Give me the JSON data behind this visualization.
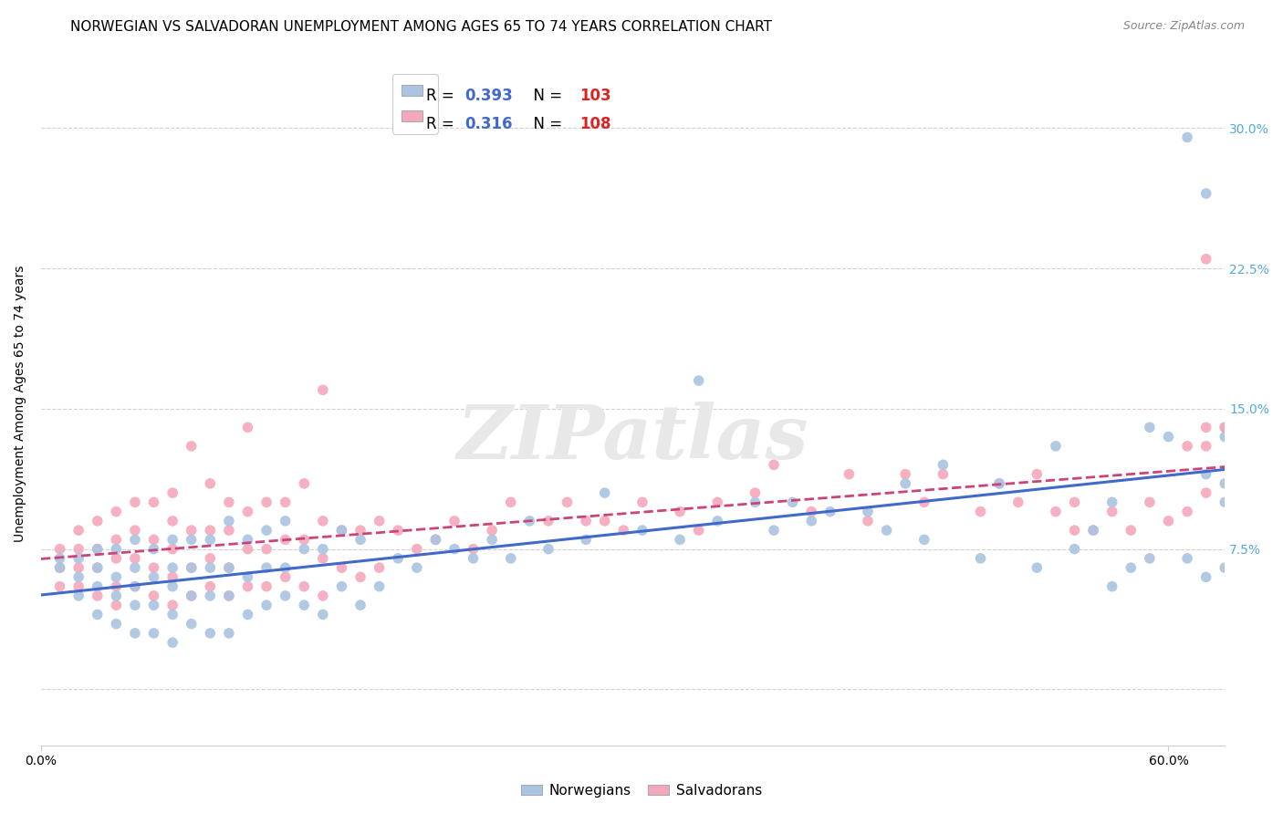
{
  "title": "NORWEGIAN VS SALVADORAN UNEMPLOYMENT AMONG AGES 65 TO 74 YEARS CORRELATION CHART",
  "source": "Source: ZipAtlas.com",
  "ylabel": "Unemployment Among Ages 65 to 74 years",
  "xlim": [
    0.0,
    0.63
  ],
  "ylim": [
    -0.03,
    0.335
  ],
  "xticks": [
    0.0,
    0.6
  ],
  "xtick_labels": [
    "0.0%",
    "60.0%"
  ],
  "yticks": [
    0.075,
    0.15,
    0.225,
    0.3
  ],
  "ytick_labels": [
    "7.5%",
    "15.0%",
    "22.5%",
    "30.0%"
  ],
  "norwegian_R": 0.393,
  "norwegian_N": 103,
  "salvadoran_R": 0.316,
  "salvadoran_N": 108,
  "norwegian_color": "#aac4e2",
  "salvadoran_color": "#f5a8bc",
  "norwegian_line_color": "#4169cc",
  "salvadoran_line_color": "#cc4477",
  "background_color": "#ffffff",
  "grid_color": "#d0d0d0",
  "tick_color": "#55aadd",
  "title_fontsize": 11,
  "axis_label_fontsize": 10,
  "tick_fontsize": 10,
  "legend_fontsize": 12,
  "norwegian_x": [
    0.01,
    0.01,
    0.02,
    0.02,
    0.02,
    0.03,
    0.03,
    0.03,
    0.03,
    0.04,
    0.04,
    0.04,
    0.04,
    0.05,
    0.05,
    0.05,
    0.05,
    0.05,
    0.06,
    0.06,
    0.06,
    0.06,
    0.07,
    0.07,
    0.07,
    0.07,
    0.07,
    0.08,
    0.08,
    0.08,
    0.08,
    0.09,
    0.09,
    0.09,
    0.09,
    0.1,
    0.1,
    0.1,
    0.1,
    0.11,
    0.11,
    0.11,
    0.12,
    0.12,
    0.12,
    0.13,
    0.13,
    0.13,
    0.14,
    0.14,
    0.15,
    0.15,
    0.16,
    0.16,
    0.17,
    0.17,
    0.18,
    0.19,
    0.2,
    0.21,
    0.22,
    0.23,
    0.24,
    0.25,
    0.26,
    0.27,
    0.29,
    0.3,
    0.32,
    0.34,
    0.35,
    0.36,
    0.38,
    0.39,
    0.4,
    0.41,
    0.42,
    0.44,
    0.45,
    0.46,
    0.47,
    0.48,
    0.5,
    0.51,
    0.53,
    0.54,
    0.55,
    0.56,
    0.57,
    0.57,
    0.58,
    0.59,
    0.59,
    0.6,
    0.61,
    0.61,
    0.62,
    0.62,
    0.62,
    0.63,
    0.63,
    0.63,
    0.63
  ],
  "norwegian_y": [
    0.065,
    0.07,
    0.05,
    0.06,
    0.07,
    0.04,
    0.055,
    0.065,
    0.075,
    0.035,
    0.05,
    0.06,
    0.075,
    0.03,
    0.045,
    0.055,
    0.065,
    0.08,
    0.03,
    0.045,
    0.06,
    0.075,
    0.025,
    0.04,
    0.055,
    0.065,
    0.08,
    0.035,
    0.05,
    0.065,
    0.08,
    0.03,
    0.05,
    0.065,
    0.08,
    0.03,
    0.05,
    0.065,
    0.09,
    0.04,
    0.06,
    0.08,
    0.045,
    0.065,
    0.085,
    0.05,
    0.065,
    0.09,
    0.045,
    0.075,
    0.04,
    0.075,
    0.055,
    0.085,
    0.045,
    0.08,
    0.055,
    0.07,
    0.065,
    0.08,
    0.075,
    0.07,
    0.08,
    0.07,
    0.09,
    0.075,
    0.08,
    0.105,
    0.085,
    0.08,
    0.165,
    0.09,
    0.1,
    0.085,
    0.1,
    0.09,
    0.095,
    0.095,
    0.085,
    0.11,
    0.08,
    0.12,
    0.07,
    0.11,
    0.065,
    0.13,
    0.075,
    0.085,
    0.055,
    0.1,
    0.065,
    0.07,
    0.14,
    0.135,
    0.295,
    0.07,
    0.265,
    0.06,
    0.115,
    0.11,
    0.1,
    0.135,
    0.065
  ],
  "salvadoran_x": [
    0.01,
    0.01,
    0.01,
    0.02,
    0.02,
    0.02,
    0.02,
    0.03,
    0.03,
    0.03,
    0.03,
    0.04,
    0.04,
    0.04,
    0.04,
    0.04,
    0.05,
    0.05,
    0.05,
    0.05,
    0.06,
    0.06,
    0.06,
    0.06,
    0.07,
    0.07,
    0.07,
    0.07,
    0.07,
    0.08,
    0.08,
    0.08,
    0.08,
    0.09,
    0.09,
    0.09,
    0.09,
    0.1,
    0.1,
    0.1,
    0.1,
    0.11,
    0.11,
    0.11,
    0.11,
    0.12,
    0.12,
    0.12,
    0.13,
    0.13,
    0.13,
    0.14,
    0.14,
    0.14,
    0.15,
    0.15,
    0.15,
    0.15,
    0.16,
    0.16,
    0.17,
    0.17,
    0.18,
    0.18,
    0.19,
    0.2,
    0.21,
    0.22,
    0.23,
    0.24,
    0.25,
    0.27,
    0.28,
    0.29,
    0.3,
    0.31,
    0.32,
    0.34,
    0.35,
    0.36,
    0.38,
    0.39,
    0.41,
    0.43,
    0.44,
    0.46,
    0.47,
    0.48,
    0.5,
    0.51,
    0.52,
    0.53,
    0.54,
    0.55,
    0.55,
    0.56,
    0.57,
    0.58,
    0.59,
    0.6,
    0.61,
    0.61,
    0.62,
    0.62,
    0.62,
    0.62,
    0.63,
    0.63
  ],
  "salvadoran_y": [
    0.055,
    0.065,
    0.075,
    0.055,
    0.065,
    0.075,
    0.085,
    0.05,
    0.065,
    0.075,
    0.09,
    0.045,
    0.055,
    0.07,
    0.08,
    0.095,
    0.055,
    0.07,
    0.085,
    0.1,
    0.05,
    0.065,
    0.08,
    0.1,
    0.045,
    0.06,
    0.075,
    0.09,
    0.105,
    0.05,
    0.065,
    0.085,
    0.13,
    0.055,
    0.07,
    0.085,
    0.11,
    0.05,
    0.065,
    0.085,
    0.1,
    0.055,
    0.075,
    0.095,
    0.14,
    0.055,
    0.075,
    0.1,
    0.06,
    0.08,
    0.1,
    0.055,
    0.08,
    0.11,
    0.05,
    0.07,
    0.09,
    0.16,
    0.065,
    0.085,
    0.06,
    0.085,
    0.065,
    0.09,
    0.085,
    0.075,
    0.08,
    0.09,
    0.075,
    0.085,
    0.1,
    0.09,
    0.1,
    0.09,
    0.09,
    0.085,
    0.1,
    0.095,
    0.085,
    0.1,
    0.105,
    0.12,
    0.095,
    0.115,
    0.09,
    0.115,
    0.1,
    0.115,
    0.095,
    0.11,
    0.1,
    0.115,
    0.095,
    0.085,
    0.1,
    0.085,
    0.095,
    0.085,
    0.1,
    0.09,
    0.095,
    0.13,
    0.13,
    0.105,
    0.23,
    0.14,
    0.14,
    0.14
  ]
}
